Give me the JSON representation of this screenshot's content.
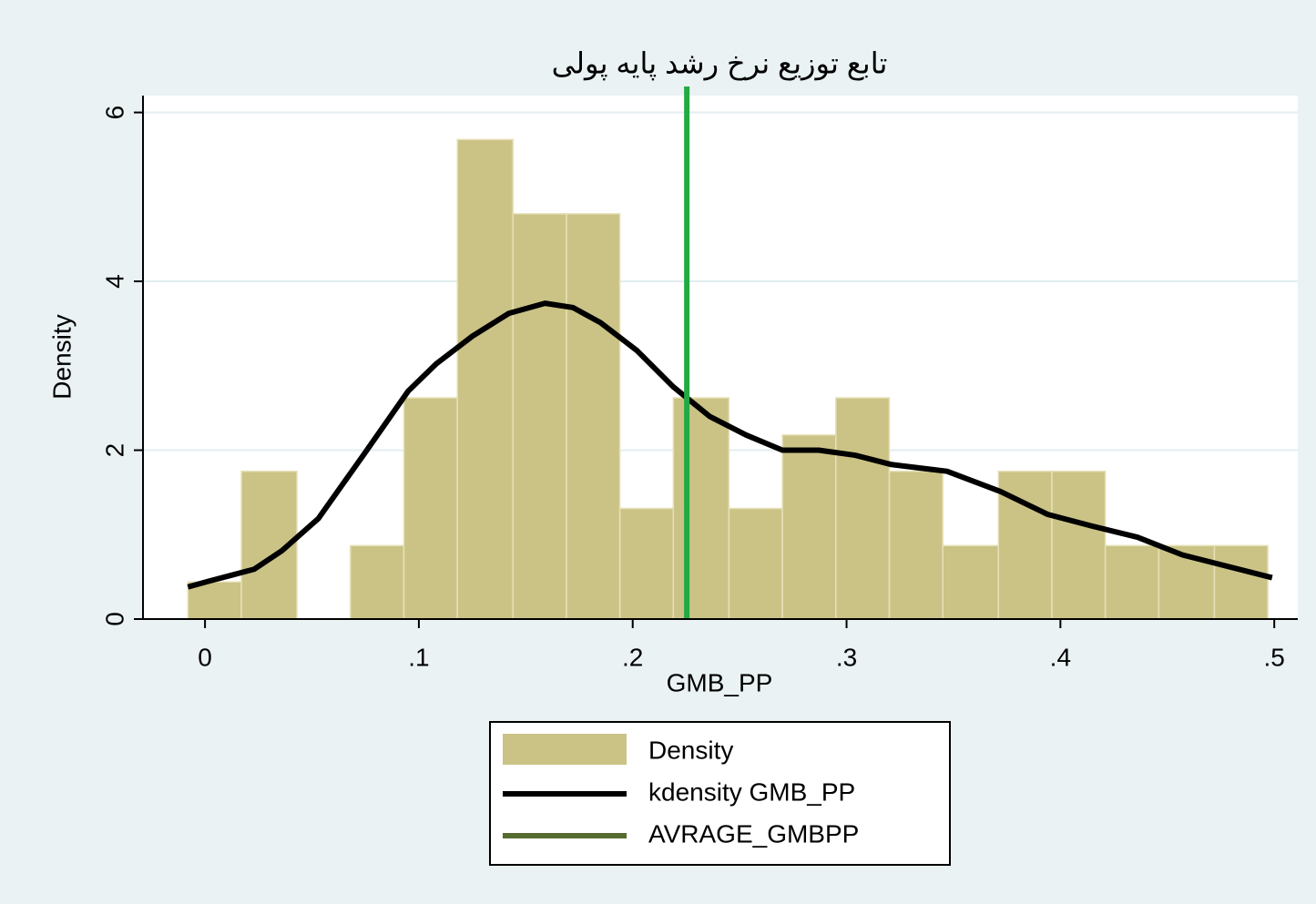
{
  "chart_data": {
    "type": "histogram",
    "title": "تابع توزیع نرخ رشد پایه پولی",
    "x_label": "GMB_PP",
    "y_label": "Density",
    "bins": [
      -0.008,
      0.017,
      0.043,
      0.068,
      0.093,
      0.118,
      0.144,
      0.169,
      0.194,
      0.219,
      0.245,
      0.27,
      0.295,
      0.32,
      0.345,
      0.371,
      0.396,
      0.421,
      0.446,
      0.472,
      0.497
    ],
    "series": [
      {
        "name": "Density",
        "color": "#cbc386",
        "values": [
          0.44,
          1.75,
          0,
          0.87,
          2.62,
          5.68,
          4.8,
          4.8,
          1.31,
          2.62,
          1.31,
          2.18,
          2.62,
          1.75,
          0.87,
          1.75,
          1.75,
          0.87,
          0.87,
          0.87
        ]
      },
      {
        "name": "kdensity GMB_PP",
        "color": "#000000",
        "x": [
          -0.008,
          0.002,
          0.023,
          0.036,
          0.053,
          0.074,
          0.095,
          0.108,
          0.125,
          0.142,
          0.159,
          0.172,
          0.185,
          0.202,
          0.219,
          0.236,
          0.253,
          0.27,
          0.287,
          0.304,
          0.321,
          0.347,
          0.372,
          0.394,
          0.415,
          0.436,
          0.457,
          0.499
        ],
        "values": [
          0.38,
          0.45,
          0.59,
          0.81,
          1.19,
          1.94,
          2.7,
          3.02,
          3.35,
          3.62,
          3.74,
          3.69,
          3.51,
          3.18,
          2.75,
          2.4,
          2.18,
          2.0,
          2.0,
          1.94,
          1.83,
          1.75,
          1.51,
          1.24,
          1.1,
          0.97,
          0.76,
          0.49
        ]
      },
      {
        "name": "AVRAGE_GMBPP",
        "color": "#22aa44",
        "legend_color": "#556b2f",
        "value": 0.2253
      }
    ],
    "xlim": [
      -0.029,
      0.511
    ],
    "ylim": [
      0,
      6.2
    ],
    "xticks": [
      0,
      {
        "value": 0.1,
        "label": ".1"
      },
      {
        "value": 0.2,
        "label": ".2"
      },
      {
        "value": 0.3,
        "label": ".3"
      },
      {
        "value": 0.4,
        "label": ".4"
      },
      {
        "value": 0.5,
        "label": ".5"
      }
    ],
    "yticks": [
      0,
      2,
      4,
      6
    ],
    "grid": true,
    "legend": "bottom"
  }
}
